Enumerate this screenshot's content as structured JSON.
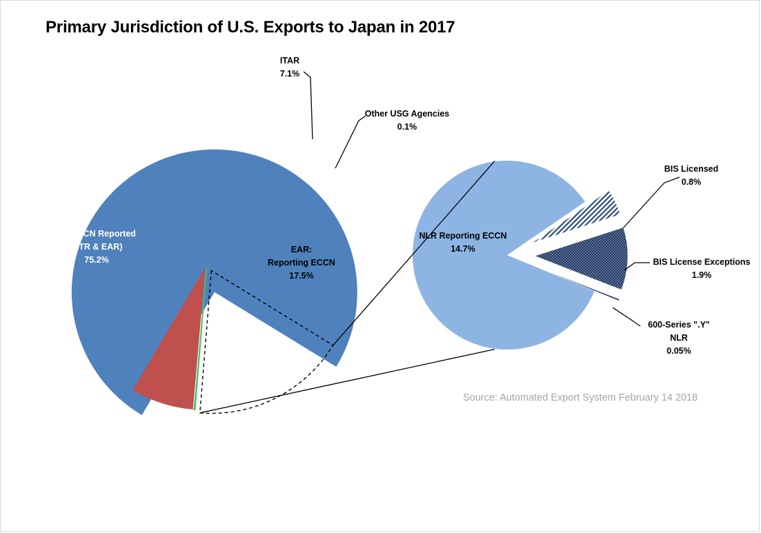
{
  "title": "Primary Jurisdiction of U.S. Exports to Japan in 2017",
  "source": "Source: Automated Export System February 14 2018",
  "chart_data": [
    {
      "type": "pie",
      "title": "Primary Jurisdiction of U.S. Exports to Japan in 2017",
      "slices": [
        {
          "name": "No ECCN Reported (FTR & EAR)",
          "value": 75.2,
          "label_lines": [
            "No ECCN Reported",
            "(FTR & EAR)",
            "75.2%"
          ],
          "color": "#4f81bd"
        },
        {
          "name": "ITAR",
          "value": 7.1,
          "label_lines": [
            "ITAR",
            "7.1%"
          ],
          "color": "#c0504d"
        },
        {
          "name": "Other USG Agencies",
          "value": 0.1,
          "label_lines": [
            "Other USG Agencies",
            "0.1%"
          ],
          "color": "#4bc06a"
        },
        {
          "name": "EAR: Reporting ECCN",
          "value": 17.5,
          "label_lines": [
            "EAR:",
            "Reporting ECCN",
            "17.5%"
          ],
          "color": "none"
        }
      ]
    },
    {
      "type": "pie",
      "title": "",
      "slices": [
        {
          "name": "NLR Reporting ECCN",
          "value": 14.7,
          "label_lines": [
            "NLR Reporting ECCN",
            "14.7%"
          ],
          "color": "#8eb4e3"
        },
        {
          "name": "BIS Licensed",
          "value": 0.8,
          "label_lines": [
            "BIS Licensed",
            "0.8%"
          ],
          "color": "#1f3864"
        },
        {
          "name": "BIS License Exceptions",
          "value": 1.9,
          "label_lines": [
            "BIS License Exceptions",
            "1.9%"
          ],
          "color": "#1f3864"
        },
        {
          "name": "600-Series \".Y\" NLR",
          "value": 0.05,
          "label_lines": [
            "600-Series \".Y\"",
            "NLR",
            "0.05%"
          ],
          "color": "#1f3864"
        }
      ]
    }
  ]
}
